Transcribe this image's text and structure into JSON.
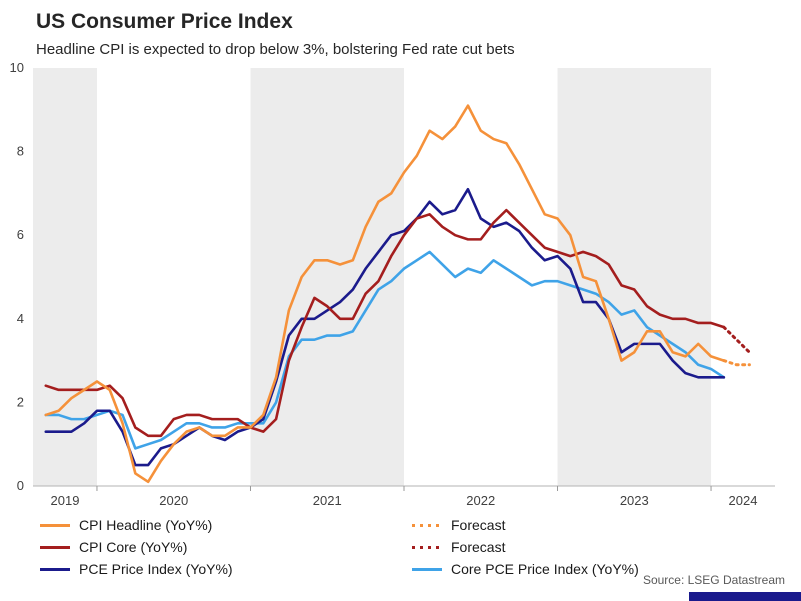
{
  "title": "US Consumer Price Index",
  "subtitle": "Headline CPI is expected to drop below 3%, bolstering Fed rate cut bets",
  "source": "Source: LSEG Datastream",
  "colors": {
    "headline_orange": "#F5913A",
    "core_red": "#A41E1E",
    "pce_navy": "#1B1B8C",
    "core_pce_blue": "#3FA3E8",
    "band_gray": "#ECECEC",
    "axis_line": "#B3B3B3",
    "brand_bar": "#1A1A8C"
  },
  "legend": {
    "items": [
      {
        "label": "CPI Headline (YoY%)",
        "color": "#F5913A",
        "style": "solid"
      },
      {
        "label": "CPI Core (YoY%)",
        "color": "#A41E1E",
        "style": "solid"
      },
      {
        "label": "PCE Price Index (YoY%)",
        "color": "#1B1B8C",
        "style": "solid"
      },
      {
        "label": "Forecast",
        "color": "#F5913A",
        "style": "dotted"
      },
      {
        "label": "Forecast",
        "color": "#A41E1E",
        "style": "dotted"
      },
      {
        "label": "Core PCE Price Index (YoY%)",
        "color": "#3FA3E8",
        "style": "solid"
      }
    ]
  },
  "chart_data": {
    "type": "line",
    "title": "US Consumer Price Index",
    "x_start": "2019-09",
    "frequency": "monthly",
    "ylim": [
      0,
      10
    ],
    "y_ticks": [
      0,
      2,
      4,
      6,
      8,
      10
    ],
    "t_min": -1,
    "t_max": 57,
    "band_color": "#ECECEC",
    "bands": [
      {
        "from": -1,
        "to": 4
      },
      {
        "from": 16,
        "to": 28
      },
      {
        "from": 40,
        "to": 52
      }
    ],
    "x_tick_t": [
      4,
      16,
      28,
      40,
      52
    ],
    "x_labels": [
      {
        "text": "2019",
        "t": 1.5
      },
      {
        "text": "2020",
        "t": 10
      },
      {
        "text": "2021",
        "t": 22
      },
      {
        "text": "2022",
        "t": 34
      },
      {
        "text": "2023",
        "t": 46
      },
      {
        "text": "2024",
        "t": 54.5
      }
    ],
    "series": [
      {
        "id": "cpi-headline",
        "name": "CPI Headline (YoY%)",
        "color": "#F5913A",
        "values": [
          1.7,
          1.8,
          2.1,
          2.3,
          2.5,
          2.3,
          1.5,
          0.3,
          0.1,
          0.6,
          1.0,
          1.3,
          1.4,
          1.2,
          1.2,
          1.4,
          1.4,
          1.7,
          2.6,
          4.2,
          5.0,
          5.4,
          5.4,
          5.3,
          5.4,
          6.2,
          6.8,
          7.0,
          7.5,
          7.9,
          8.5,
          8.3,
          8.6,
          9.1,
          8.5,
          8.3,
          8.2,
          7.7,
          7.1,
          6.5,
          6.4,
          6.0,
          5.0,
          4.9,
          4.0,
          3.0,
          3.2,
          3.7,
          3.7,
          3.2,
          3.1,
          3.4,
          3.1,
          3.0
        ],
        "forecast": [
          2.9,
          2.9
        ]
      },
      {
        "id": "cpi-core",
        "name": "CPI Core (YoY%)",
        "color": "#A41E1E",
        "values": [
          2.4,
          2.3,
          2.3,
          2.3,
          2.3,
          2.4,
          2.1,
          1.4,
          1.2,
          1.2,
          1.6,
          1.7,
          1.7,
          1.6,
          1.6,
          1.6,
          1.4,
          1.3,
          1.6,
          3.0,
          3.8,
          4.5,
          4.3,
          4.0,
          4.0,
          4.6,
          4.9,
          5.5,
          6.0,
          6.4,
          6.5,
          6.2,
          6.0,
          5.9,
          5.9,
          6.3,
          6.6,
          6.3,
          6.0,
          5.7,
          5.6,
          5.5,
          5.6,
          5.5,
          5.3,
          4.8,
          4.7,
          4.3,
          4.1,
          4.0,
          4.0,
          3.9,
          3.9,
          3.8
        ],
        "forecast": [
          3.5,
          3.2
        ]
      },
      {
        "id": "pce",
        "name": "PCE Price Index (YoY%)",
        "color": "#1B1B8C",
        "values": [
          1.3,
          1.3,
          1.3,
          1.5,
          1.8,
          1.8,
          1.3,
          0.5,
          0.5,
          0.9,
          1.0,
          1.2,
          1.4,
          1.2,
          1.1,
          1.3,
          1.4,
          1.6,
          2.5,
          3.6,
          4.0,
          4.0,
          4.2,
          4.4,
          4.7,
          5.2,
          5.6,
          6.0,
          6.1,
          6.4,
          6.8,
          6.5,
          6.6,
          7.1,
          6.4,
          6.2,
          6.3,
          6.1,
          5.7,
          5.4,
          5.5,
          5.2,
          4.4,
          4.4,
          4.0,
          3.2,
          3.4,
          3.4,
          3.4,
          3.0,
          2.7,
          2.6,
          2.6,
          2.6
        ]
      },
      {
        "id": "core-pce",
        "name": "Core PCE Price Index (YoY%)",
        "color": "#3FA3E8",
        "values": [
          1.7,
          1.7,
          1.6,
          1.6,
          1.7,
          1.8,
          1.7,
          0.9,
          1.0,
          1.1,
          1.3,
          1.5,
          1.5,
          1.4,
          1.4,
          1.5,
          1.5,
          1.5,
          2.0,
          3.1,
          3.5,
          3.5,
          3.6,
          3.6,
          3.7,
          4.2,
          4.7,
          4.9,
          5.2,
          5.4,
          5.6,
          5.3,
          5.0,
          5.2,
          5.1,
          5.4,
          5.2,
          5.0,
          4.8,
          4.9,
          4.9,
          4.8,
          4.7,
          4.6,
          4.4,
          4.1,
          4.2,
          3.8,
          3.6,
          3.4,
          3.2,
          2.9,
          2.8,
          2.6
        ]
      }
    ]
  }
}
